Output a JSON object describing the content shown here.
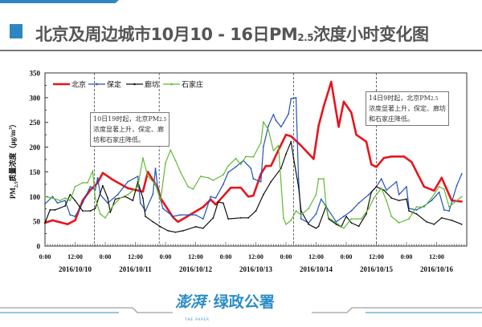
{
  "header": {
    "title_main": "北京及周边城市10月10 - 16日PM",
    "title_sub": "2.5",
    "title_tail": "浓度小时变化图"
  },
  "footer": {
    "logo_mark": "澎湃",
    "logo_dot": "·",
    "logo_text": "绿政公署",
    "logo_sub": "THE PAPER"
  },
  "colors": {
    "accent": "#2e86c1",
    "beijing": "#e8141c",
    "baoding": "#2052b8",
    "langfang": "#111111",
    "shijiazhuang": "#62b832"
  },
  "annotations": [
    {
      "lines": [
        "10日19时起，北京PM",
        "浓度显著上升，保定、廊",
        "坊和石家庄降低。"
      ],
      "sub": "2.5"
    },
    {
      "lines": [
        "14日9时起，北京PM",
        "浓度显著上升，保定、廊坊",
        "和石家庄降低。"
      ],
      "sub": "2.5"
    }
  ],
  "chart_data": {
    "type": "line",
    "title": "北京及周边城市10月10 - 16日PM2.5浓度小时变化图",
    "xlabel": "",
    "ylabel": "PM2.5质量浓度（μg/m³）",
    "ylabel_parts": {
      "pre": "PM",
      "sub": "2.5",
      "mid": "质量浓度（μg/m",
      "sup": "3",
      "post": "）"
    },
    "x_unit": "hours since 2016/10/10 0:00",
    "xlim": [
      0,
      168
    ],
    "ylim": [
      0,
      350
    ],
    "yticks": [
      0,
      50,
      100,
      150,
      200,
      250,
      300,
      350
    ],
    "xtick_labels": [
      "0:00",
      "12:00",
      "0:00",
      "12:00",
      "0:00",
      "12:00",
      "0:00",
      "12:00",
      "0:00",
      "12:00",
      "0:00",
      "12:00",
      "0:00",
      "12:00"
    ],
    "date_labels": [
      "2016/10/10",
      "2016/10/11",
      "2016/10/12",
      "2016/10/13",
      "2016/10/14",
      "2016/10/15",
      "2016/10/16"
    ],
    "dashed_lines_hours": [
      19.7,
      45.5,
      99,
      132
    ],
    "legend_position": "top-left",
    "grid": false,
    "series": [
      {
        "name": "北京",
        "color_key": "beijing",
        "points": [
          [
            0,
            47
          ],
          [
            3,
            52
          ],
          [
            9,
            44
          ],
          [
            12,
            52
          ],
          [
            15,
            92
          ],
          [
            18,
            113
          ],
          [
            21,
            128
          ],
          [
            23,
            148
          ],
          [
            27,
            134
          ],
          [
            33,
            117
          ],
          [
            39,
            110
          ],
          [
            41,
            150
          ],
          [
            45,
            117
          ],
          [
            46,
            97
          ],
          [
            51,
            58
          ],
          [
            53,
            49
          ],
          [
            55,
            55
          ],
          [
            63,
            79
          ],
          [
            66,
            94
          ],
          [
            68,
            84
          ],
          [
            74,
            118
          ],
          [
            78,
            118
          ],
          [
            81,
            100
          ],
          [
            83,
            102
          ],
          [
            86,
            146
          ],
          [
            88,
            162
          ],
          [
            90,
            162
          ],
          [
            93,
            194
          ],
          [
            96,
            225
          ],
          [
            98,
            222
          ],
          [
            102,
            203
          ],
          [
            107,
            176
          ],
          [
            109,
            243
          ],
          [
            111,
            282
          ],
          [
            114,
            332
          ],
          [
            117,
            241
          ],
          [
            119,
            292
          ],
          [
            122,
            270
          ],
          [
            124,
            225
          ],
          [
            128,
            211
          ],
          [
            130,
            165
          ],
          [
            132,
            160
          ],
          [
            135,
            178
          ],
          [
            138,
            181
          ],
          [
            143,
            181
          ],
          [
            146,
            170
          ],
          [
            151,
            120
          ],
          [
            155,
            112
          ],
          [
            158,
            138
          ],
          [
            162,
            92
          ],
          [
            166,
            90
          ]
        ]
      },
      {
        "name": "保定",
        "color_key": "baoding",
        "points": [
          [
            0,
            85
          ],
          [
            3,
            100
          ],
          [
            5,
            87
          ],
          [
            8,
            92
          ],
          [
            10,
            63
          ],
          [
            12,
            60
          ],
          [
            15,
            87
          ],
          [
            18,
            120
          ],
          [
            20,
            113
          ],
          [
            21,
            138
          ],
          [
            22,
            104
          ],
          [
            25,
            87
          ],
          [
            29,
            104
          ],
          [
            33,
            130
          ],
          [
            37,
            141
          ],
          [
            38,
            87
          ],
          [
            40,
            71
          ],
          [
            43,
            105
          ],
          [
            44,
            157
          ],
          [
            45,
            113
          ],
          [
            47,
            76
          ],
          [
            51,
            60
          ],
          [
            54,
            63
          ],
          [
            60,
            63
          ],
          [
            63,
            55
          ],
          [
            66,
            100
          ],
          [
            68,
            97
          ],
          [
            71,
            125
          ],
          [
            73,
            149
          ],
          [
            76,
            160
          ],
          [
            79,
            173
          ],
          [
            82,
            157
          ],
          [
            83,
            136
          ],
          [
            86,
            130
          ],
          [
            87,
            201
          ],
          [
            89,
            243
          ],
          [
            91,
            266
          ],
          [
            92,
            254
          ],
          [
            94,
            241
          ],
          [
            95,
            249
          ],
          [
            97,
            267
          ],
          [
            98,
            298
          ],
          [
            100,
            300
          ],
          [
            101,
            136
          ],
          [
            102,
            55
          ],
          [
            105,
            47
          ],
          [
            108,
            65
          ],
          [
            110,
            95
          ],
          [
            116,
            49
          ],
          [
            119,
            60
          ],
          [
            122,
            71
          ],
          [
            125,
            87
          ],
          [
            129,
            104
          ],
          [
            132,
            120
          ],
          [
            134,
            136
          ],
          [
            136,
            113
          ],
          [
            140,
            130
          ],
          [
            141,
            104
          ],
          [
            144,
            120
          ],
          [
            145,
            76
          ],
          [
            148,
            73
          ],
          [
            151,
            81
          ],
          [
            154,
            92
          ],
          [
            157,
            109
          ],
          [
            159,
            73
          ],
          [
            161,
            71
          ],
          [
            164,
            122
          ],
          [
            166,
            146
          ]
        ]
      },
      {
        "name": "廊坊",
        "color_key": "langfang",
        "points": [
          [
            0,
            47
          ],
          [
            2,
            73
          ],
          [
            4,
            73
          ],
          [
            8,
            81
          ],
          [
            10,
            104
          ],
          [
            12,
            92
          ],
          [
            15,
            71
          ],
          [
            18,
            71
          ],
          [
            20,
            76
          ],
          [
            23,
            122
          ],
          [
            25,
            97
          ],
          [
            26,
            68
          ],
          [
            28,
            95
          ],
          [
            32,
            100
          ],
          [
            35,
            92
          ],
          [
            37,
            130
          ],
          [
            39,
            97
          ],
          [
            40,
            60
          ],
          [
            43,
            49
          ],
          [
            46,
            39
          ],
          [
            49,
            31
          ],
          [
            52,
            28
          ],
          [
            55,
            31
          ],
          [
            60,
            39
          ],
          [
            63,
            36
          ],
          [
            67,
            57
          ],
          [
            69,
            89
          ],
          [
            71,
            87
          ],
          [
            73,
            55
          ],
          [
            78,
            57
          ],
          [
            81,
            57
          ],
          [
            84,
            71
          ],
          [
            87,
            104
          ],
          [
            90,
            130
          ],
          [
            94,
            157
          ],
          [
            96,
            186
          ],
          [
            98,
            211
          ],
          [
            99,
            178
          ],
          [
            101,
            120
          ],
          [
            102,
            71
          ],
          [
            105,
            44
          ],
          [
            108,
            36
          ],
          [
            109,
            40
          ],
          [
            112,
            81
          ],
          [
            113,
            55
          ],
          [
            116,
            44
          ],
          [
            118,
            39
          ],
          [
            120,
            60
          ],
          [
            122,
            47
          ],
          [
            125,
            40
          ],
          [
            128,
            65
          ],
          [
            130,
            109
          ],
          [
            132,
            120
          ],
          [
            135,
            113
          ],
          [
            138,
            97
          ],
          [
            141,
            92
          ],
          [
            144,
            95
          ],
          [
            145,
            71
          ],
          [
            148,
            65
          ],
          [
            152,
            49
          ],
          [
            155,
            44
          ],
          [
            158,
            57
          ],
          [
            162,
            52
          ],
          [
            166,
            44
          ]
        ]
      },
      {
        "name": "石家庄",
        "color_key": "shijiazhuang",
        "points": [
          [
            0,
            100
          ],
          [
            3,
            97
          ],
          [
            6,
            92
          ],
          [
            8,
            97
          ],
          [
            10,
            92
          ],
          [
            12,
            120
          ],
          [
            15,
            128
          ],
          [
            17,
            128
          ],
          [
            19,
            152
          ],
          [
            20,
            97
          ],
          [
            22,
            65
          ],
          [
            24,
            57
          ],
          [
            27,
            81
          ],
          [
            30,
            97
          ],
          [
            33,
            104
          ],
          [
            37,
            120
          ],
          [
            39,
            178
          ],
          [
            41,
            141
          ],
          [
            44,
            125
          ],
          [
            46,
            92
          ],
          [
            48,
            168
          ],
          [
            50,
            194
          ],
          [
            52,
            173
          ],
          [
            54,
            149
          ],
          [
            57,
            120
          ],
          [
            59,
            115
          ],
          [
            62,
            141
          ],
          [
            65,
            138
          ],
          [
            67,
            133
          ],
          [
            71,
            144
          ],
          [
            73,
            162
          ],
          [
            76,
            177
          ],
          [
            78,
            165
          ],
          [
            80,
            181
          ],
          [
            83,
            180
          ],
          [
            86,
            209
          ],
          [
            87,
            251
          ],
          [
            89,
            235
          ],
          [
            91,
            193
          ],
          [
            93,
            203
          ],
          [
            95,
            57
          ],
          [
            96,
            44
          ],
          [
            98,
            52
          ],
          [
            100,
            71
          ],
          [
            102,
            63
          ],
          [
            105,
            76
          ],
          [
            108,
            104
          ],
          [
            109,
            136
          ],
          [
            111,
            136
          ],
          [
            112,
            81
          ],
          [
            113,
            57
          ],
          [
            116,
            47
          ],
          [
            119,
            36
          ],
          [
            122,
            55
          ],
          [
            126,
            55
          ],
          [
            129,
            76
          ],
          [
            131,
            97
          ],
          [
            134,
            117
          ],
          [
            136,
            92
          ],
          [
            138,
            60
          ],
          [
            141,
            47
          ],
          [
            145,
            55
          ],
          [
            148,
            79
          ],
          [
            151,
            79
          ],
          [
            154,
            97
          ],
          [
            157,
            120
          ],
          [
            159,
            115
          ],
          [
            161,
            79
          ],
          [
            164,
            92
          ],
          [
            166,
            100
          ]
        ]
      }
    ]
  }
}
